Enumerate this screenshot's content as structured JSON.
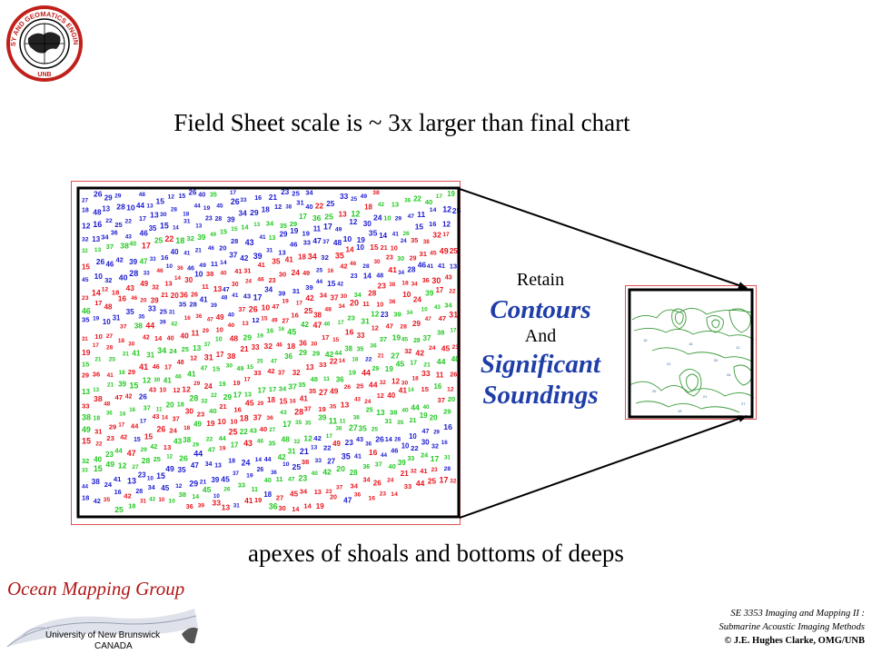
{
  "logo": {
    "ring_text": "GEODESY AND GEOMATICS ENGINEERING",
    "bottom_text": "UNB"
  },
  "title": "Field Sheet scale is ~ 3x larger than final chart",
  "middle": {
    "retain": "Retain",
    "contours": "Contours",
    "and": "And",
    "significant": "Significant",
    "soundings": "Soundings"
  },
  "caption": "apexes of shoals and bottoms of deeps",
  "omg_logo": {
    "name": "Ocean Mapping Group",
    "university": "University of New Brunswick",
    "country": "CANADA"
  },
  "course": {
    "line1": "SE 3353 Imaging and Mapping II :",
    "line2": "Submarine Acoustic Imaging Methods",
    "copyright": "© J.E. Hughes Clarke, OMG/UNB"
  },
  "colors": {
    "accent_blue": "#1f3ea8",
    "sounding_red": "#e8141c",
    "sounding_blue": "#1a1ad0",
    "sounding_green": "#22c822",
    "contour_green": "#3a9a3a",
    "omg_red": "#b01818"
  }
}
